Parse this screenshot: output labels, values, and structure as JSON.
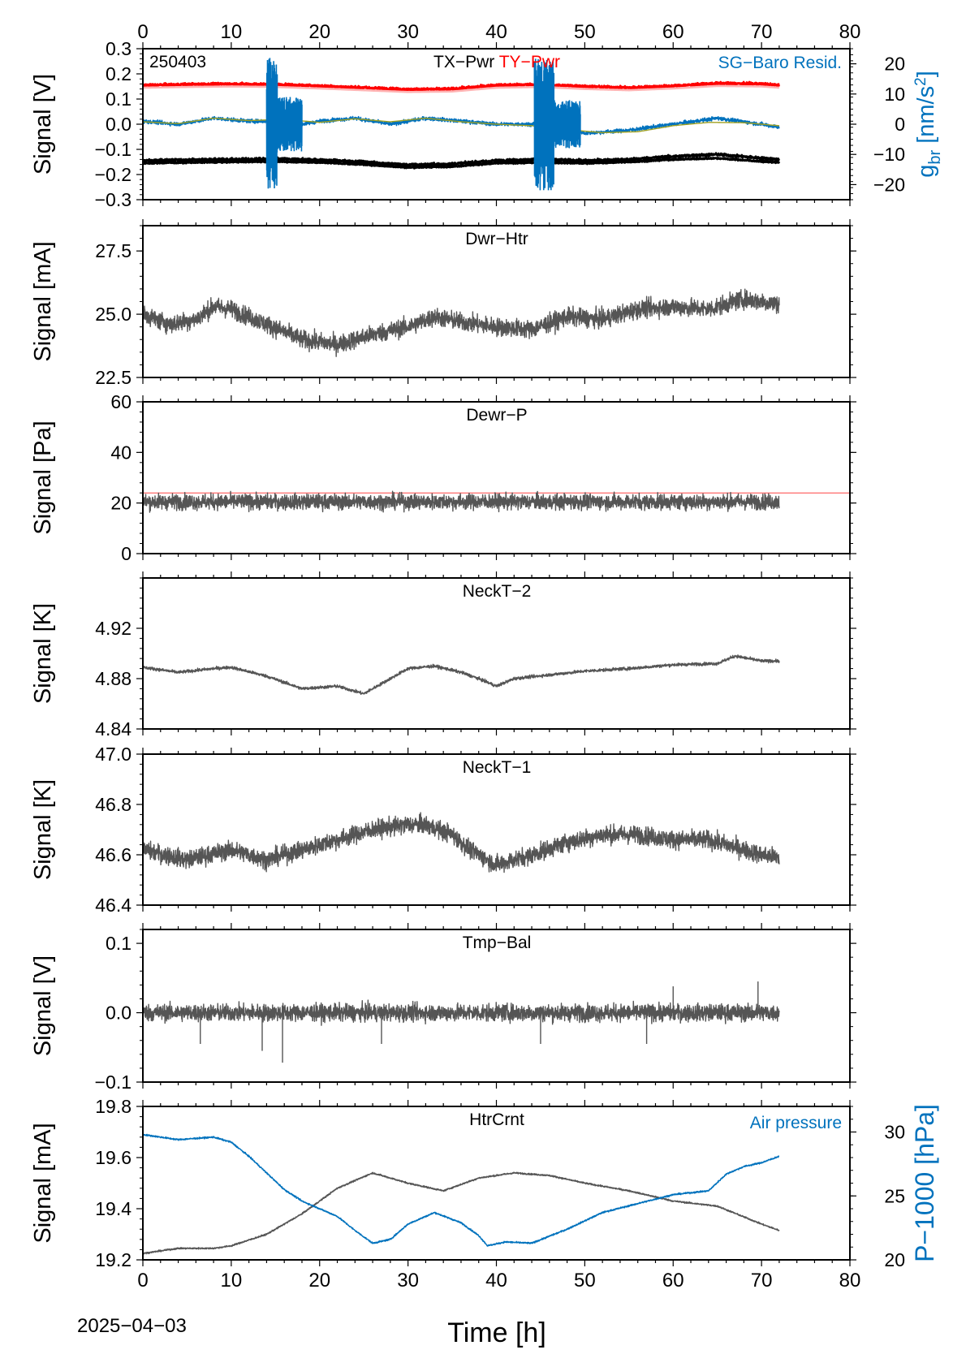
{
  "figure": {
    "date_label": "2025−04−03",
    "x_axis_title": "Time [h]"
  },
  "chart_data": [
    {
      "id": "p1",
      "type": "line",
      "title": "TX−Pwr",
      "title2": "TY−Pwr",
      "corner_label": "250403",
      "right_label": "SG−Baro Resid.",
      "ylabel": "Signal [V]",
      "ylabel2": "g_br [nm/s²]",
      "x_range": [
        0,
        80
      ],
      "x_ticks": [
        0,
        10,
        20,
        30,
        40,
        50,
        60,
        70,
        80
      ],
      "x_tick_labels": [
        "0",
        "10",
        "20",
        "30",
        "40",
        "50",
        "60",
        "70",
        "80"
      ],
      "ylim": [
        -0.3,
        0.3
      ],
      "y_ticks": [
        -0.3,
        -0.2,
        -0.1,
        0.0,
        0.1,
        0.2,
        0.3
      ],
      "y_tick_labels": [
        "−0.3",
        "−0.2",
        "−0.1",
        "0.0",
        "0.1",
        "0.2",
        "0.3"
      ],
      "ylim2": [
        -25,
        25
      ],
      "y2_ticks": [
        -20,
        -10,
        0,
        10,
        20
      ],
      "y2_tick_labels": [
        "−20",
        "−10",
        "0",
        "10",
        "20"
      ],
      "colors": {
        "tx": "#000000",
        "ty": "#ff0000",
        "sg": "#0072bd",
        "trend": "#a0a020"
      },
      "series": [
        {
          "name": "TX−Pwr",
          "axis": "left",
          "color": "#000000",
          "noise": 0.005,
          "x": [
            0,
            5,
            10,
            15,
            20,
            25,
            30,
            35,
            40,
            45,
            50,
            55,
            60,
            65,
            70,
            72
          ],
          "y": [
            -0.145,
            -0.142,
            -0.14,
            -0.138,
            -0.142,
            -0.15,
            -0.162,
            -0.158,
            -0.145,
            -0.14,
            -0.145,
            -0.14,
            -0.128,
            -0.12,
            -0.135,
            -0.14
          ]
        },
        {
          "name": "",
          "axis": "left",
          "color": "#000000",
          "noise": 0.003,
          "x": [
            0,
            5,
            10,
            15,
            20,
            25,
            30,
            35,
            40,
            45,
            50,
            55,
            60,
            65,
            70,
            72
          ],
          "y": [
            -0.155,
            -0.152,
            -0.15,
            -0.148,
            -0.152,
            -0.16,
            -0.172,
            -0.168,
            -0.155,
            -0.152,
            -0.155,
            -0.15,
            -0.14,
            -0.135,
            -0.148,
            -0.152
          ]
        },
        {
          "name": "TY−Pwr",
          "axis": "left",
          "color": "#ff0000",
          "noise": 0.005,
          "x": [
            0,
            5,
            10,
            15,
            20,
            25,
            30,
            35,
            40,
            45,
            50,
            55,
            60,
            65,
            70,
            72
          ],
          "y": [
            0.155,
            0.158,
            0.16,
            0.158,
            0.152,
            0.145,
            0.138,
            0.14,
            0.155,
            0.158,
            0.15,
            0.145,
            0.152,
            0.162,
            0.16,
            0.155
          ]
        },
        {
          "name": "",
          "axis": "left",
          "color": "#ffb3b3",
          "noise": 0.0,
          "x": [
            0,
            5,
            10,
            15,
            20,
            25,
            30,
            35,
            40,
            45,
            50,
            55,
            60,
            65,
            70,
            72
          ],
          "y": [
            0.145,
            0.148,
            0.15,
            0.148,
            0.142,
            0.135,
            0.128,
            0.13,
            0.145,
            0.148,
            0.14,
            0.135,
            0.142,
            0.152,
            0.15,
            0.145
          ]
        },
        {
          "name": "SG−Baro Resid.",
          "axis": "right",
          "color": "#0072bd",
          "noise": 0.6,
          "x": [
            0,
            4,
            8,
            12,
            14,
            16,
            18,
            20,
            24,
            28,
            32,
            36,
            40,
            44,
            46,
            48,
            50,
            55,
            60,
            65,
            70,
            72
          ],
          "y": [
            1,
            0,
            2,
            1,
            1,
            3,
            0,
            1,
            2,
            0,
            2,
            1,
            0,
            0,
            2,
            -1,
            -3,
            -2,
            0,
            2,
            0,
            -1
          ]
        },
        {
          "name": "",
          "axis": "right",
          "color": "#a0a020",
          "noise": 0.0,
          "x": [
            0,
            4,
            8,
            12,
            16,
            20,
            24,
            28,
            32,
            36,
            40,
            44,
            48,
            52,
            56,
            60,
            64,
            68,
            72
          ],
          "y": [
            0.8,
            0.2,
            2.0,
            1.2,
            1.6,
            0.6,
            1.8,
            0.8,
            2.0,
            0.8,
            0.0,
            -0.5,
            -1.8,
            -2.8,
            -2.5,
            -0.5,
            0.6,
            0.5,
            -0.5
          ]
        }
      ],
      "spikes": [
        {
          "x_range": [
            14.0,
            15.2
          ],
          "amp": 22,
          "hits_bounds": true
        },
        {
          "x_range": [
            15.2,
            18.0
          ],
          "amp": 9,
          "hits_bounds": false
        },
        {
          "x_range": [
            44.3,
            46.5
          ],
          "amp": 22,
          "hits_bounds": true
        },
        {
          "x_range": [
            46.5,
            49.5
          ],
          "amp": 8,
          "hits_bounds": false
        }
      ]
    },
    {
      "id": "p2",
      "type": "line",
      "title": "Dwr−Htr",
      "ylabel": "Signal [mA]",
      "x_range": [
        0,
        80
      ],
      "ylim": [
        22.5,
        28.5
      ],
      "y_ticks": [
        22.5,
        25.0,
        27.5
      ],
      "y_tick_labels": [
        "22.5",
        "25.0",
        "27.5"
      ],
      "series": [
        {
          "name": "",
          "color": "#555555",
          "noise": 0.35,
          "x": [
            0,
            3,
            6,
            8,
            10,
            14,
            18,
            22,
            26,
            30,
            33,
            36,
            40,
            44,
            48,
            52,
            56,
            60,
            64,
            68,
            72
          ],
          "y": [
            25.0,
            24.6,
            24.8,
            25.3,
            25.2,
            24.6,
            24.0,
            23.8,
            24.2,
            24.5,
            24.9,
            24.7,
            24.5,
            24.4,
            24.9,
            24.8,
            25.2,
            25.3,
            25.2,
            25.6,
            25.4
          ]
        }
      ]
    },
    {
      "id": "p3",
      "type": "line",
      "title": "Dewr−P",
      "ylabel": "Signal [Pa]",
      "x_range": [
        0,
        80
      ],
      "ylim": [
        0,
        60
      ],
      "y_ticks": [
        0,
        20,
        40,
        60
      ],
      "y_tick_labels": [
        "0",
        "20",
        "40",
        "60"
      ],
      "ref_line": {
        "y": 24.0,
        "color": "#ff4444",
        "x_range": [
          0,
          80
        ]
      },
      "series": [
        {
          "name": "",
          "color": "#555555",
          "noise": 3.0,
          "x": [
            0,
            72
          ],
          "y": [
            20.5,
            20.5
          ]
        }
      ]
    },
    {
      "id": "p4",
      "type": "line",
      "title": "NeckT−2",
      "ylabel": "Signal [K]",
      "x_range": [
        0,
        80
      ],
      "ylim": [
        4.84,
        4.96
      ],
      "y_ticks": [
        4.84,
        4.88,
        4.92
      ],
      "y_tick_labels": [
        "4.84",
        "4.88",
        "4.92"
      ],
      "series": [
        {
          "name": "",
          "color": "#555555",
          "noise": 0.0012,
          "x": [
            0,
            4,
            8,
            10,
            14,
            18,
            22,
            25,
            28,
            30,
            33,
            36,
            38,
            40,
            42,
            46,
            50,
            55,
            60,
            65,
            67,
            70,
            72
          ],
          "y": [
            4.889,
            4.885,
            4.888,
            4.889,
            4.882,
            4.872,
            4.874,
            4.868,
            4.88,
            4.888,
            4.89,
            4.885,
            4.88,
            4.874,
            4.88,
            4.883,
            4.886,
            4.888,
            4.891,
            4.892,
            4.898,
            4.894,
            4.894
          ]
        }
      ]
    },
    {
      "id": "p5",
      "type": "line",
      "title": "NeckT−1",
      "ylabel": "Signal [K]",
      "x_range": [
        0,
        80
      ],
      "ylim": [
        46.4,
        47.0
      ],
      "y_ticks": [
        46.4,
        46.6,
        46.8,
        47.0
      ],
      "y_tick_labels": [
        "46.4",
        "46.6",
        "46.8",
        "47.0"
      ],
      "series": [
        {
          "name": "",
          "color": "#555555",
          "noise": 0.035,
          "x": [
            0,
            5,
            10,
            14,
            18,
            22,
            26,
            30,
            32,
            35,
            37,
            40,
            44,
            48,
            52,
            56,
            60,
            64,
            68,
            70,
            72
          ],
          "y": [
            46.62,
            46.58,
            46.62,
            46.58,
            46.62,
            46.66,
            46.7,
            46.72,
            46.72,
            46.68,
            46.62,
            46.56,
            46.6,
            46.65,
            46.68,
            46.68,
            46.66,
            46.66,
            46.62,
            46.6,
            46.59
          ]
        }
      ]
    },
    {
      "id": "p6",
      "type": "line",
      "title": "Tmp−Bal",
      "ylabel": "Signal [V]",
      "x_range": [
        0,
        80
      ],
      "ylim": [
        -0.1,
        0.12
      ],
      "y_ticks": [
        -0.1,
        0.0,
        0.1
      ],
      "y_tick_labels": [
        "−0.1",
        "0.0",
        "0.1"
      ],
      "series": [
        {
          "name": "",
          "color": "#555555",
          "noise": 0.012,
          "x": [
            0,
            72
          ],
          "y": [
            0.0,
            0.0
          ]
        }
      ],
      "outliers": [
        {
          "x": 13.5,
          "y": -0.055
        },
        {
          "x": 15.8,
          "y": -0.072
        },
        {
          "x": 6.5,
          "y": -0.045
        },
        {
          "x": 27.0,
          "y": -0.045
        },
        {
          "x": 45.0,
          "y": -0.045
        },
        {
          "x": 57.0,
          "y": -0.045
        },
        {
          "x": 69.6,
          "y": 0.045
        },
        {
          "x": 60.0,
          "y": 0.038
        }
      ]
    },
    {
      "id": "p7",
      "type": "line",
      "title": "HtrCrnt",
      "right_label": "Air pressure",
      "ylabel": "Signal [mA]",
      "ylabel2": "P−1000 [hPa]",
      "x_range": [
        0,
        80
      ],
      "x_ticks": [
        0,
        10,
        20,
        30,
        40,
        50,
        60,
        70,
        80
      ],
      "x_tick_labels": [
        "0",
        "10",
        "20",
        "30",
        "40",
        "50",
        "60",
        "70",
        "80"
      ],
      "ylim": [
        19.2,
        19.8
      ],
      "y_ticks": [
        19.2,
        19.4,
        19.6,
        19.8
      ],
      "y_tick_labels": [
        "19.2",
        "19.4",
        "19.6",
        "19.8"
      ],
      "ylim2": [
        20,
        32
      ],
      "y2_ticks": [
        20,
        25,
        30
      ],
      "y2_tick_labels": [
        "20",
        "25",
        "30"
      ],
      "series": [
        {
          "name": "HtrCrnt",
          "axis": "left",
          "color": "#555555",
          "noise": 0.003,
          "x": [
            0,
            4,
            8,
            10,
            14,
            18,
            22,
            26,
            30,
            34,
            38,
            42,
            46,
            50,
            55,
            60,
            65,
            70,
            72
          ],
          "y": [
            19.225,
            19.245,
            19.245,
            19.255,
            19.3,
            19.38,
            19.48,
            19.54,
            19.5,
            19.47,
            19.52,
            19.54,
            19.53,
            19.5,
            19.47,
            19.43,
            19.41,
            19.34,
            19.315
          ]
        },
        {
          "name": "Air pressure",
          "axis": "right",
          "color": "#0072bd",
          "noise": 0.06,
          "x": [
            0,
            4,
            8,
            10,
            12,
            14,
            16,
            18,
            20,
            22,
            24,
            26,
            28,
            30,
            33,
            36,
            38,
            39,
            41,
            44,
            48,
            52,
            56,
            60,
            64,
            66,
            68,
            70,
            72
          ],
          "y": [
            29.8,
            29.4,
            29.6,
            29.2,
            28.1,
            26.8,
            25.5,
            24.6,
            24.0,
            23.4,
            22.3,
            21.3,
            21.6,
            22.8,
            23.7,
            22.9,
            21.9,
            21.1,
            21.4,
            21.3,
            22.4,
            23.7,
            24.4,
            25.1,
            25.4,
            26.7,
            27.3,
            27.6,
            28.1
          ]
        }
      ]
    }
  ]
}
